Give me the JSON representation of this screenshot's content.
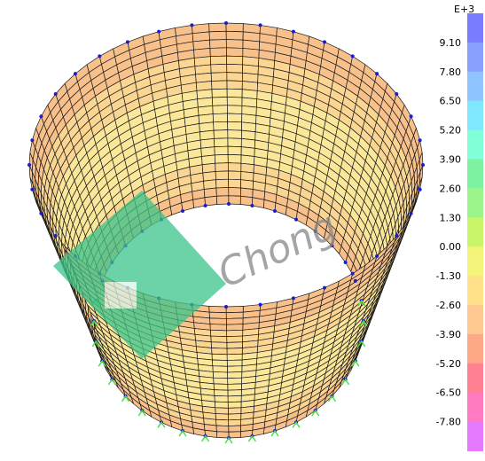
{
  "legend": {
    "title": "E+3",
    "labels": [
      "9.10",
      "7.80",
      "6.50",
      "5.20",
      "3.90",
      "2.60",
      "1.30",
      "0.00",
      "-1.30",
      "-2.60",
      "-3.90",
      "-5.20",
      "-6.50",
      "-7.80"
    ],
    "colors": [
      "#7a7cff",
      "#8aa0ff",
      "#8fc4ff",
      "#7fe8ff",
      "#80ffd8",
      "#7df2a0",
      "#9cf58a",
      "#c8f56a",
      "#f4f47a",
      "#ffe28a",
      "#ffc890",
      "#ffa888",
      "#ff8090",
      "#ff7ac0",
      "#e57aff"
    ]
  },
  "watermark": "Chong"
}
